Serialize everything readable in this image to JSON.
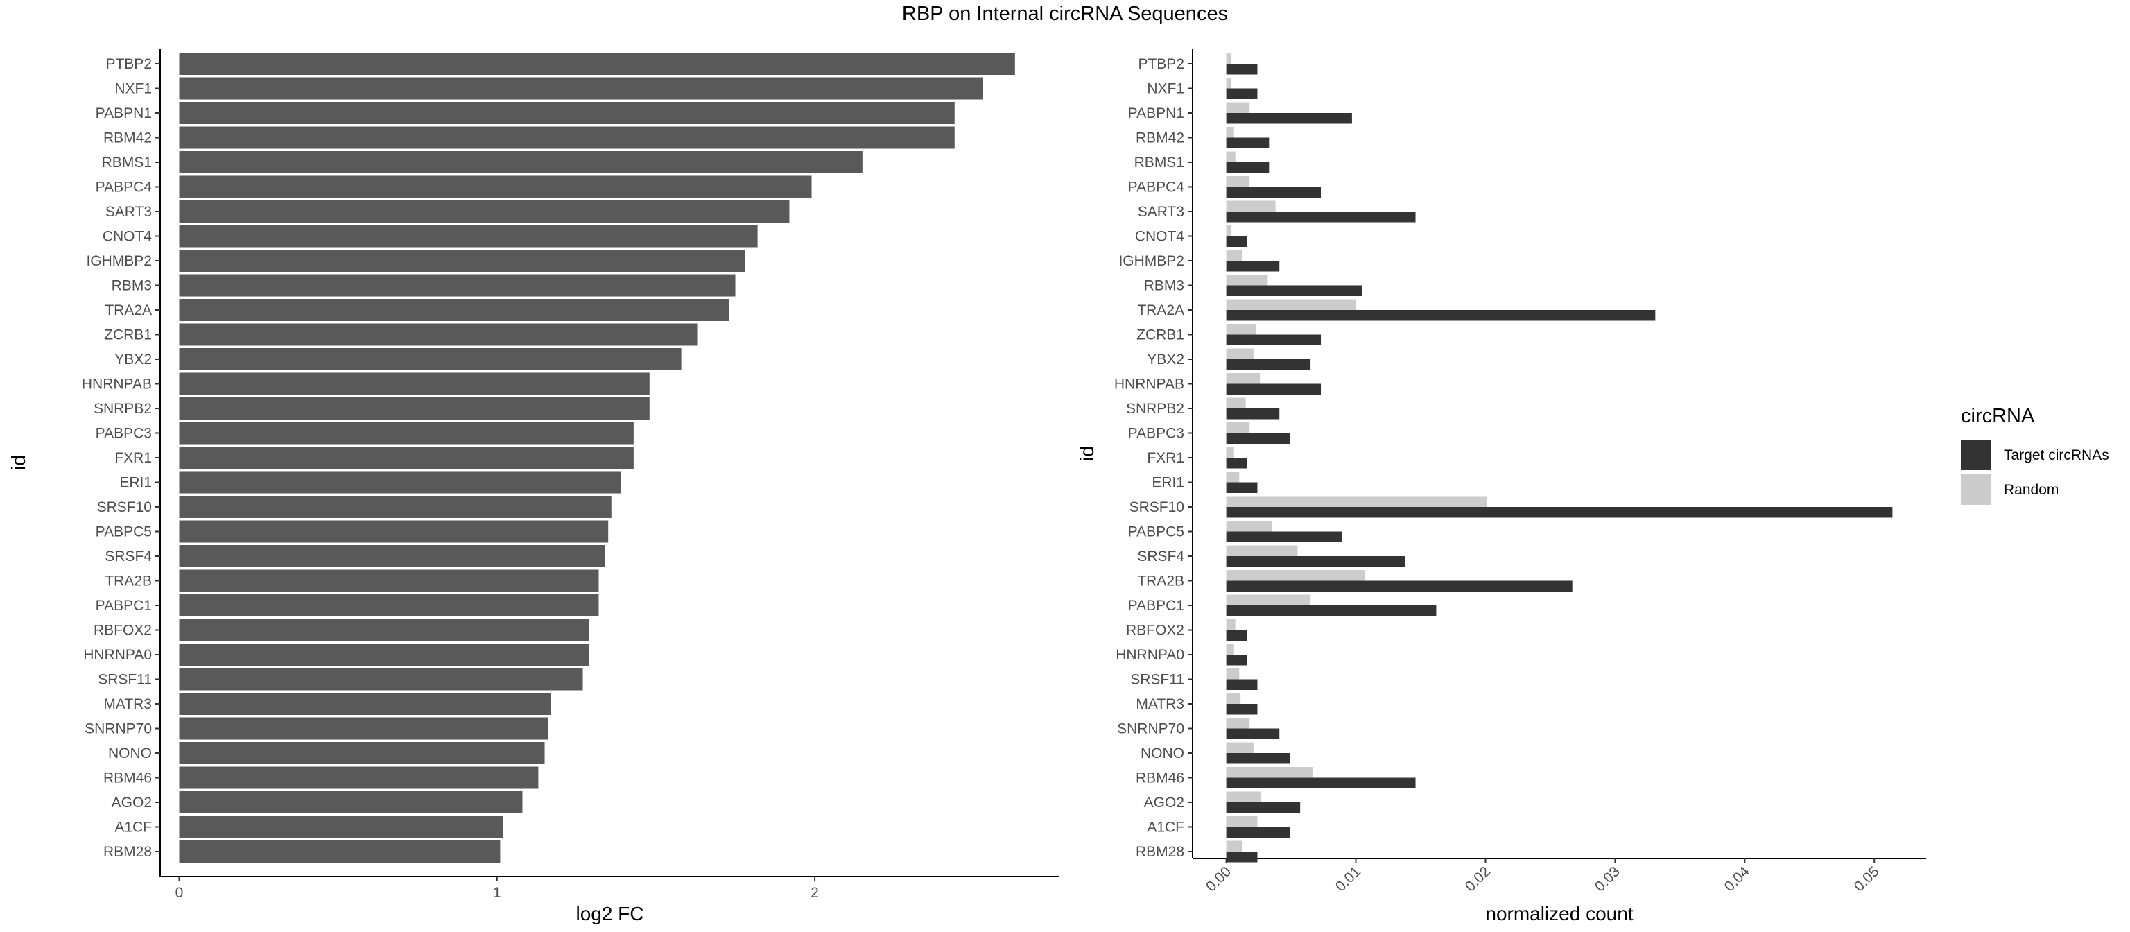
{
  "title": "RBP on Internal circRNA Sequences",
  "chart_data": [
    {
      "type": "bar",
      "orientation": "horizontal",
      "categories": [
        "PTBP2",
        "NXF1",
        "PABPN1",
        "RBM42",
        "RBMS1",
        "PABPC4",
        "SART3",
        "CNOT4",
        "IGHMBP2",
        "RBM3",
        "TRA2A",
        "ZCRB1",
        "YBX2",
        "HNRNPAB",
        "SNRPB2",
        "PABPC3",
        "FXR1",
        "ERI1",
        "SRSF10",
        "PABPC5",
        "SRSF4",
        "TRA2B",
        "PABPC1",
        "RBFOX2",
        "HNRNPA0",
        "SRSF11",
        "MATR3",
        "SNRNP70",
        "NONO",
        "RBM46",
        "AGO2",
        "A1CF",
        "RBM28"
      ],
      "values": [
        2.63,
        2.53,
        2.44,
        2.44,
        2.15,
        1.99,
        1.92,
        1.82,
        1.78,
        1.75,
        1.73,
        1.63,
        1.58,
        1.48,
        1.48,
        1.43,
        1.43,
        1.39,
        1.36,
        1.35,
        1.34,
        1.32,
        1.32,
        1.29,
        1.29,
        1.27,
        1.17,
        1.16,
        1.15,
        1.13,
        1.08,
        1.02,
        1.01
      ],
      "xlabel": "log2 FC",
      "ylabel": "id",
      "xlim": [
        -0.06,
        2.77
      ],
      "xticks": [
        "0",
        "1",
        "2"
      ],
      "color": "#595959",
      "grid": false
    },
    {
      "type": "bar",
      "orientation": "horizontal",
      "categories": [
        "PTBP2",
        "NXF1",
        "PABPN1",
        "RBM42",
        "RBMS1",
        "PABPC4",
        "SART3",
        "CNOT4",
        "IGHMBP2",
        "RBM3",
        "TRA2A",
        "ZCRB1",
        "YBX2",
        "HNRNPAB",
        "SNRPB2",
        "PABPC3",
        "FXR1",
        "ERI1",
        "SRSF10",
        "PABPC5",
        "SRSF4",
        "TRA2B",
        "PABPC1",
        "RBFOX2",
        "HNRNPA0",
        "SRSF11",
        "MATR3",
        "SNRNP70",
        "NONO",
        "RBM46",
        "AGO2",
        "A1CF",
        "RBM28"
      ],
      "series": [
        {
          "name": "Target circRNAs",
          "color": "#333333",
          "values": [
            0.0024,
            0.0024,
            0.0097,
            0.0033,
            0.0033,
            0.0073,
            0.0146,
            0.0016,
            0.0041,
            0.0105,
            0.0331,
            0.0073,
            0.0065,
            0.0073,
            0.0041,
            0.0049,
            0.0016,
            0.0024,
            0.0514,
            0.0089,
            0.0138,
            0.0267,
            0.0162,
            0.0016,
            0.0016,
            0.0024,
            0.0024,
            0.0041,
            0.0049,
            0.0146,
            0.0057,
            0.0049,
            0.0024
          ]
        },
        {
          "name": "Random",
          "color": "#cccccc",
          "values": [
            0.0004,
            0.0004,
            0.0018,
            0.0006,
            0.0007,
            0.0018,
            0.0038,
            0.0004,
            0.0012,
            0.0032,
            0.01,
            0.0023,
            0.0021,
            0.0026,
            0.0015,
            0.0018,
            0.0006,
            0.001,
            0.0201,
            0.0035,
            0.0055,
            0.0107,
            0.0065,
            0.0007,
            0.0006,
            0.001,
            0.0011,
            0.0018,
            0.0021,
            0.0067,
            0.0027,
            0.0024,
            0.0012
          ]
        }
      ],
      "xlabel": "normalized count",
      "ylabel": "id",
      "xlim": [
        -0.0026,
        0.054
      ],
      "xticks": [
        "0.00",
        "0.01",
        "0.02",
        "0.03",
        "0.04",
        "0.05"
      ],
      "legend": {
        "title": "circRNA",
        "position": "right"
      },
      "grid": false
    }
  ]
}
